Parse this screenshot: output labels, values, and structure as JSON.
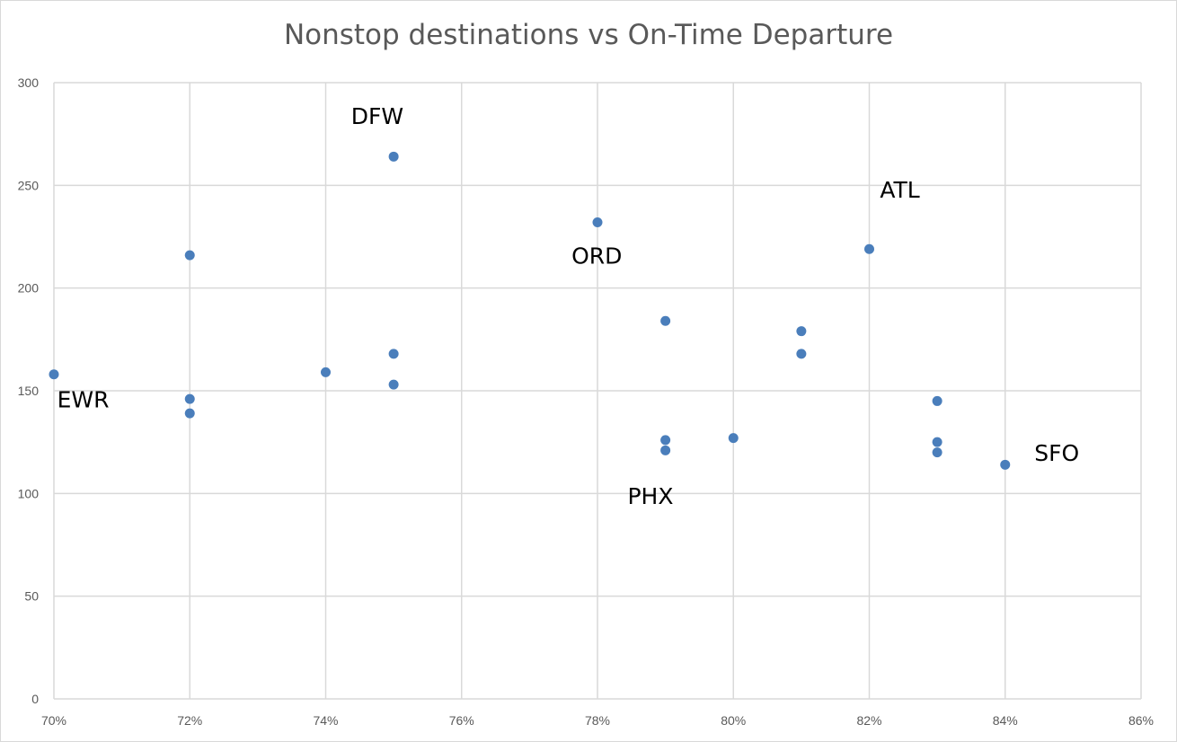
{
  "chart_data": {
    "type": "scatter",
    "title": "Nonstop destinations vs On-Time Departure",
    "xlabel": "",
    "ylabel": "",
    "xlim": [
      0.7,
      0.86
    ],
    "ylim": [
      0,
      300
    ],
    "x_ticks": [
      "70%",
      "72%",
      "74%",
      "76%",
      "78%",
      "80%",
      "82%",
      "84%",
      "86%"
    ],
    "y_ticks": [
      "0",
      "50",
      "100",
      "150",
      "200",
      "250",
      "300"
    ],
    "grid": true,
    "colors": {
      "point": "#4a7ebb",
      "grid": "#d9d9d9",
      "axis_text": "#595959"
    },
    "points": [
      {
        "x": 0.7,
        "y": 158
      },
      {
        "x": 0.72,
        "y": 216
      },
      {
        "x": 0.72,
        "y": 146
      },
      {
        "x": 0.72,
        "y": 139
      },
      {
        "x": 0.74,
        "y": 159
      },
      {
        "x": 0.75,
        "y": 264
      },
      {
        "x": 0.75,
        "y": 168
      },
      {
        "x": 0.75,
        "y": 153
      },
      {
        "x": 0.78,
        "y": 232
      },
      {
        "x": 0.79,
        "y": 184
      },
      {
        "x": 0.79,
        "y": 126
      },
      {
        "x": 0.79,
        "y": 121
      },
      {
        "x": 0.8,
        "y": 127
      },
      {
        "x": 0.81,
        "y": 179
      },
      {
        "x": 0.81,
        "y": 168
      },
      {
        "x": 0.82,
        "y": 219
      },
      {
        "x": 0.83,
        "y": 145
      },
      {
        "x": 0.83,
        "y": 125
      },
      {
        "x": 0.83,
        "y": 120
      },
      {
        "x": 0.84,
        "y": 114
      }
    ],
    "annotations": [
      {
        "text": "DFW",
        "x": 0.7476,
        "y": 283
      },
      {
        "text": "ATL",
        "x": 0.8245,
        "y": 247
      },
      {
        "text": "ORD",
        "x": 0.7799,
        "y": 215
      },
      {
        "text": "EWR",
        "x": 0.7043,
        "y": 145
      },
      {
        "text": "SFO",
        "x": 0.8476,
        "y": 119
      },
      {
        "text": "PHX",
        "x": 0.7878,
        "y": 98
      }
    ]
  }
}
